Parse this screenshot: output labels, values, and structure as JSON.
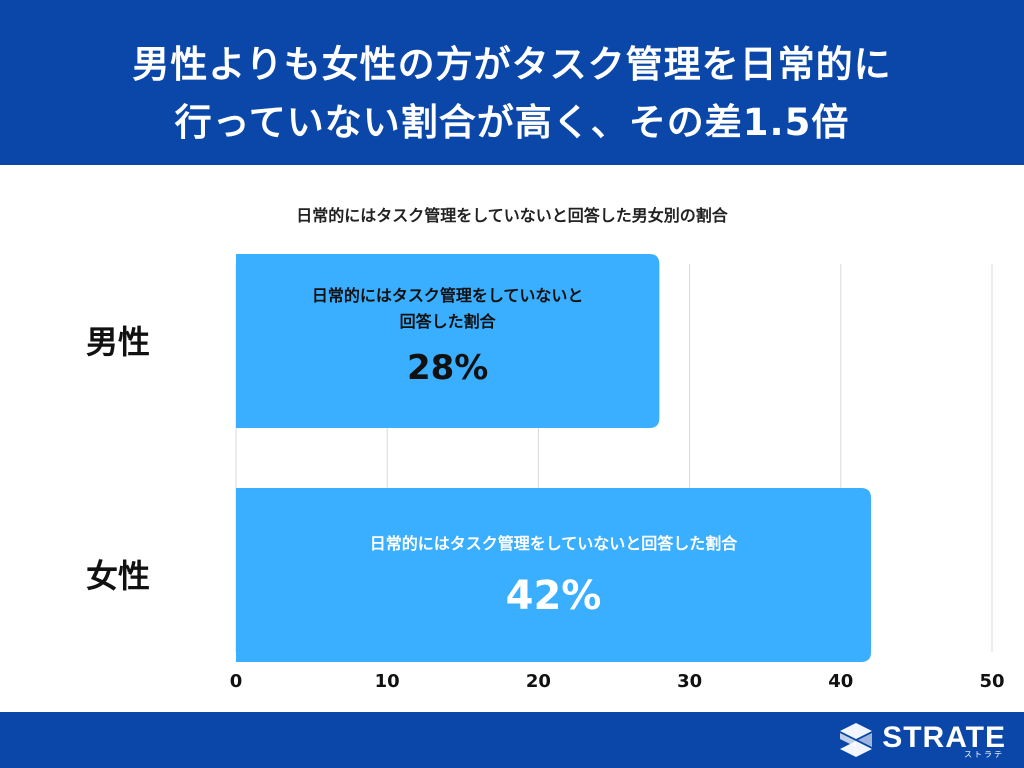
{
  "header": {
    "title_line1": "男性よりも女性の方がタスク管理を日常的に",
    "title_line2": "行っていない割合が高く、その差1.5倍"
  },
  "colors": {
    "header_bg": "#0a47a9",
    "bar": "#3aaeff",
    "grid": "#d9d9d9"
  },
  "chart_data": {
    "type": "bar",
    "orientation": "horizontal",
    "title": "日常的にはタスク管理をしていないと回答した男女別の割合",
    "categories": [
      "男性",
      "女性"
    ],
    "values": [
      28,
      42
    ],
    "unit": "%",
    "bar_labels": [
      {
        "lines": [
          "日常的にはタスク管理をしていないと",
          "回答した割合"
        ],
        "value": "28%"
      },
      {
        "lines": [
          "日常的にはタスク管理をしていないと回答した割合"
        ],
        "value": "42%"
      }
    ],
    "xlim": [
      0,
      50
    ],
    "xticks": [
      0,
      10,
      20,
      30,
      40,
      50
    ],
    "grid": true,
    "legend": "none"
  },
  "footer": {
    "logo_name": "STRATE",
    "logo_sub": "ストラテ",
    "logo_icon": "strate-logo-icon"
  }
}
